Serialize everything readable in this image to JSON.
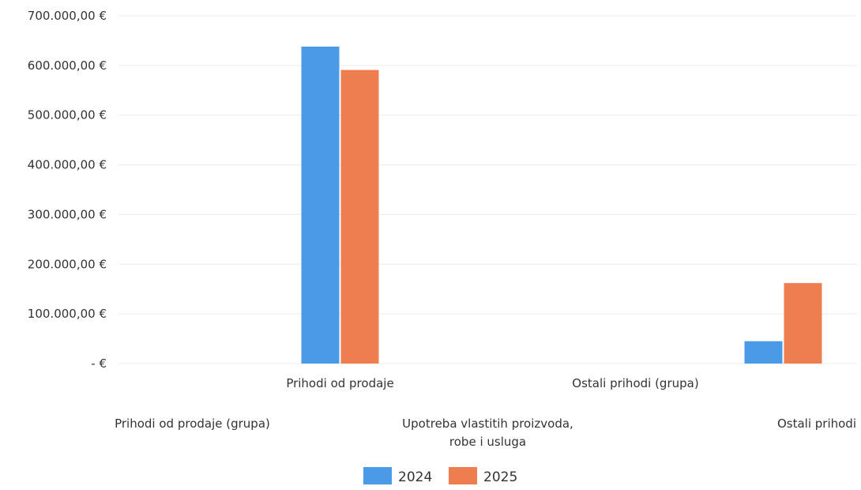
{
  "chart_data": {
    "type": "bar",
    "categories": [
      "Prihodi od prodaje (grupa)",
      "Prihodi od prodaje",
      "Upotreba vlastitih proizvoda, robe i usluga",
      "Ostali prihodi (grupa)",
      "Ostali prihodi"
    ],
    "series": [
      {
        "name": "2024",
        "values": [
          0,
          638000,
          0,
          0,
          45000
        ],
        "color": "#4a9ae8"
      },
      {
        "name": "2025",
        "values": [
          0,
          591000,
          0,
          0,
          162000
        ],
        "color": "#ee7d4f"
      }
    ],
    "yticks": [
      "- €",
      "100.000,00 €",
      "200.000,00 €",
      "300.000,00 €",
      "400.000,00 €",
      "500.000,00 €",
      "600.000,00 €",
      "700.000,00 €"
    ],
    "ylim": [
      0,
      700000
    ],
    "grid": true,
    "legend_position": "bottom"
  }
}
